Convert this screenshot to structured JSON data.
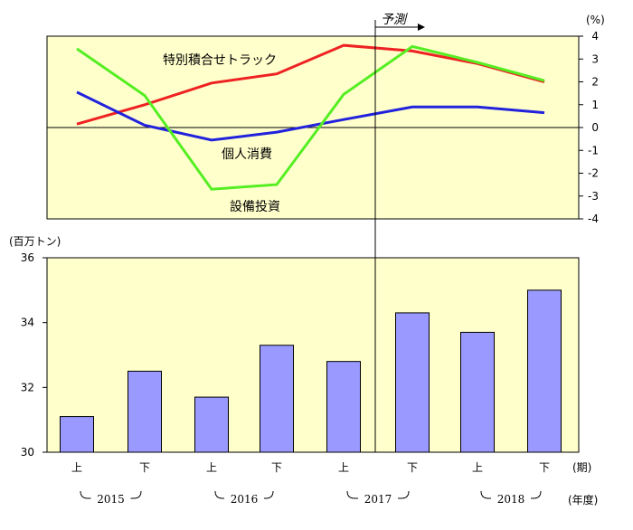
{
  "chart_data": [
    {
      "type": "line",
      "x": [
        "2015上",
        "2015下",
        "2016上",
        "2016下",
        "2017上",
        "2017下",
        "2018上",
        "2018下"
      ],
      "ylim": [
        -4,
        4
      ],
      "yticks": [
        "4",
        "3",
        "2",
        "1",
        "0",
        "-1",
        "-2",
        "-3",
        "-4"
      ],
      "ylabel": "(%)",
      "forecast_label": "予測",
      "plot_background": "#ffffcc",
      "series": [
        {
          "name": "特別積合せトラック",
          "color": "#ee2222",
          "values": [
            0.15,
            1.0,
            1.95,
            2.35,
            3.6,
            3.35,
            2.8,
            2.0
          ]
        },
        {
          "name": "個人消費",
          "color": "#2222dd",
          "values": [
            1.55,
            0.1,
            -0.55,
            -0.2,
            0.35,
            0.9,
            0.9,
            0.65
          ]
        },
        {
          "name": "設備投資",
          "color": "#55ee22",
          "values": [
            3.45,
            1.4,
            -2.7,
            -2.5,
            1.45,
            3.55,
            2.85,
            2.05
          ]
        }
      ]
    },
    {
      "type": "bar",
      "categories": [
        "上",
        "下",
        "上",
        "下",
        "上",
        "下",
        "上",
        "下"
      ],
      "values": [
        31.1,
        32.5,
        31.7,
        33.3,
        32.8,
        34.3,
        33.7,
        35.0
      ],
      "ylim": [
        30,
        36
      ],
      "yticks": [
        "36",
        "34",
        "32",
        "30"
      ],
      "ylabel": "(百万トン)",
      "xlabel": "(期)",
      "year_label": "(年度)",
      "years": [
        "2015",
        "2016",
        "2017",
        "2018"
      ],
      "bar_color": "#9999ff",
      "plot_background": "#ffffcc"
    }
  ]
}
